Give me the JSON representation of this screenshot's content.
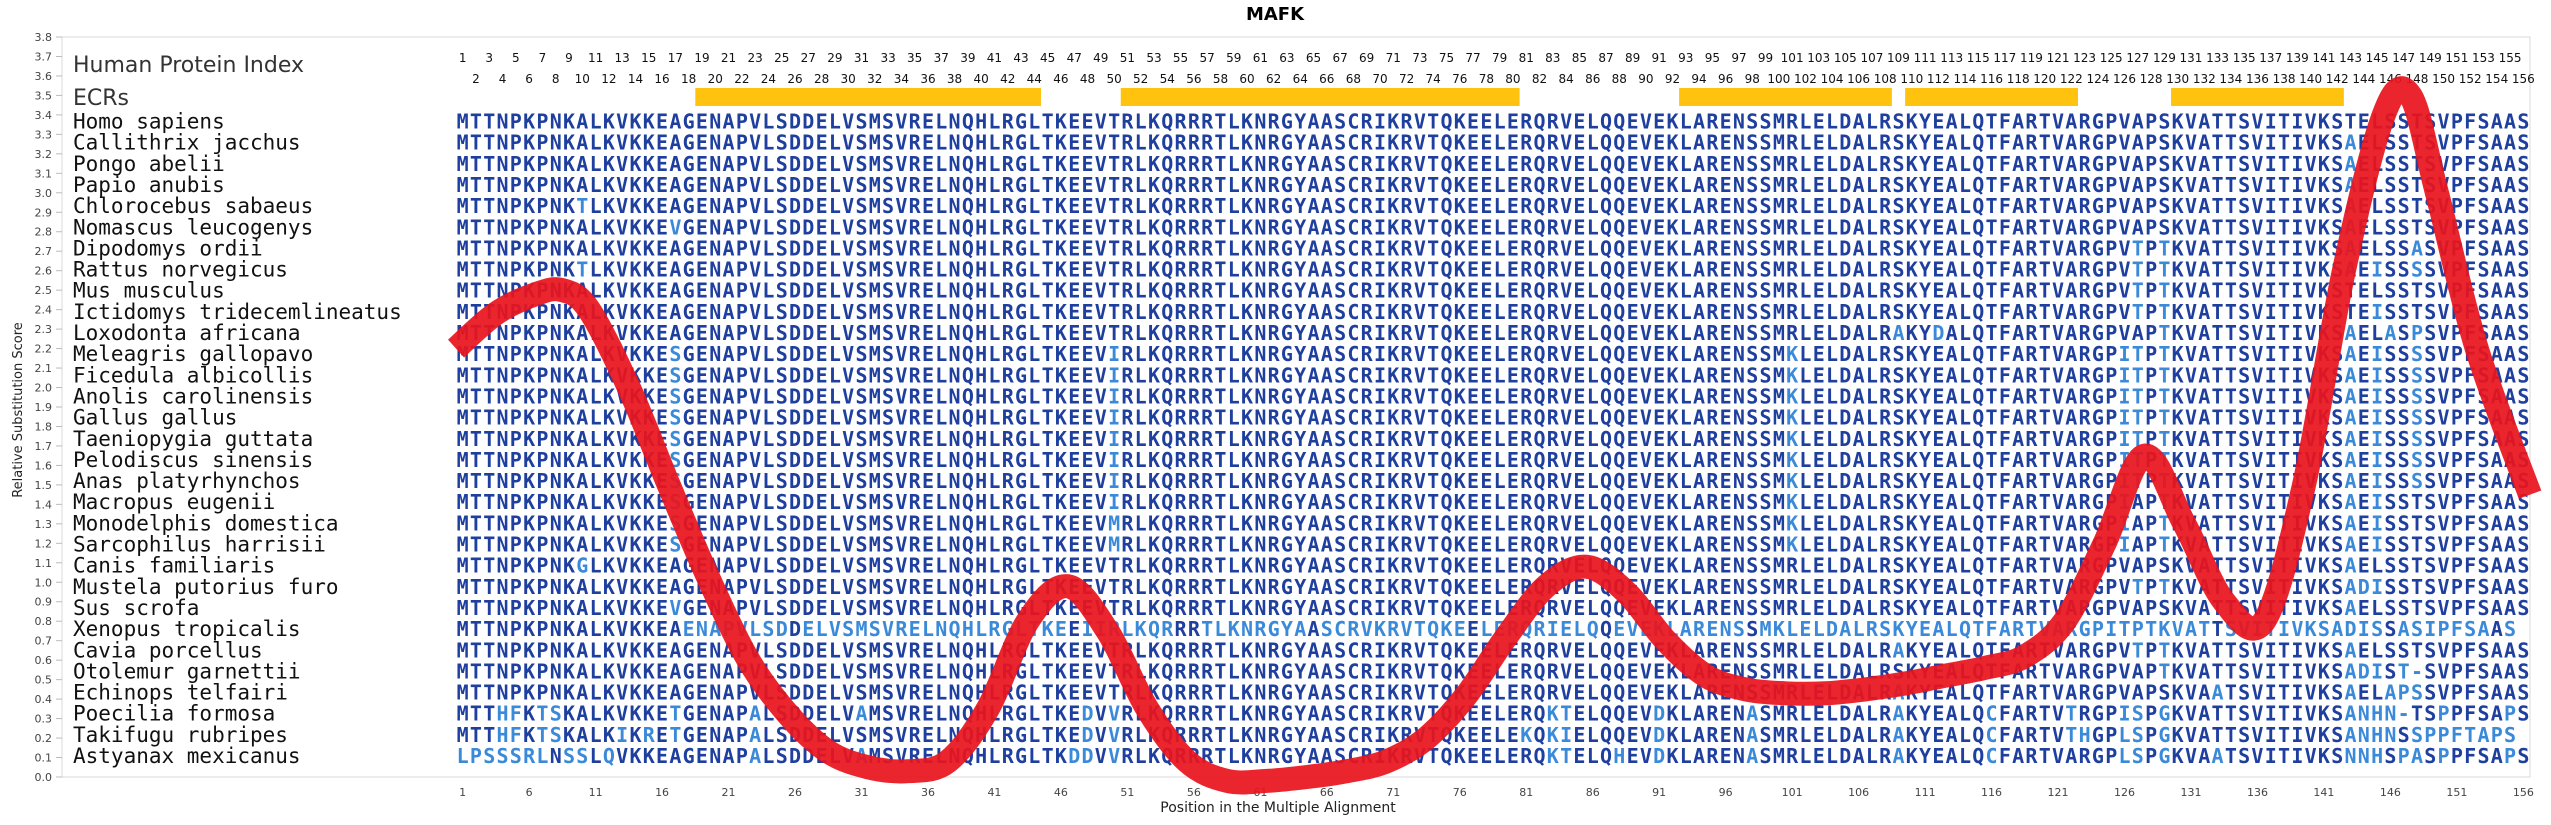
{
  "chart_data": {
    "type": "line",
    "title": "MAFK",
    "xlabel": "Position in the Multiple Alignment",
    "ylabel": "Relative Substitution Score",
    "xlim": [
      1,
      157
    ],
    "ylim": [
      0,
      3.8
    ],
    "y_ticks": [
      "0.0",
      "0.1",
      "0.2",
      "0.3",
      "0.4",
      "0.5",
      "0.6",
      "0.7",
      "0.8",
      "0.9",
      "1.0",
      "1.1",
      "1.2",
      "1.3",
      "1.4",
      "1.5",
      "1.6",
      "1.7",
      "1.8",
      "1.9",
      "2.0",
      "2.1",
      "2.2",
      "2.3",
      "2.4",
      "2.5",
      "2.6",
      "2.7",
      "2.8",
      "2.9",
      "3.0",
      "3.1",
      "3.2",
      "3.3",
      "3.4",
      "3.5",
      "3.6",
      "3.7",
      "3.8"
    ],
    "x_ticks": [
      "1",
      "6",
      "11",
      "16",
      "21",
      "26",
      "31",
      "36",
      "41",
      "46",
      "51",
      "56",
      "61",
      "66",
      "71",
      "76",
      "81",
      "86",
      "91",
      "96",
      "101",
      "106",
      "111",
      "116",
      "121",
      "126",
      "131",
      "136",
      "141",
      "146",
      "151",
      "156"
    ],
    "grid": false,
    "index_label": "Human Protein Index",
    "index_odd": [
      "1",
      "3",
      "5",
      "7",
      "9",
      "11",
      "13",
      "15",
      "17",
      "19",
      "21",
      "23",
      "25",
      "27",
      "29",
      "31",
      "33",
      "35",
      "37",
      "39",
      "41",
      "43",
      "45",
      "47",
      "49",
      "51",
      "53",
      "55",
      "57",
      "59",
      "61",
      "63",
      "65",
      "67",
      "69",
      "71",
      "73",
      "75",
      "77",
      "79",
      "81",
      "83",
      "85",
      "87",
      "89",
      "91",
      "93",
      "95",
      "97",
      "99",
      "101",
      "103",
      "105",
      "107",
      "109",
      "111",
      "113",
      "115",
      "117",
      "119",
      "121",
      "123",
      "125",
      "127",
      "129",
      "131",
      "133",
      "135",
      "137",
      "139",
      "141",
      "143",
      "145",
      "147",
      "149",
      "151",
      "153",
      "155"
    ],
    "index_even": [
      "2",
      "4",
      "6",
      "8",
      "10",
      "12",
      "14",
      "16",
      "18",
      "20",
      "22",
      "24",
      "26",
      "28",
      "30",
      "32",
      "34",
      "36",
      "38",
      "40",
      "42",
      "44",
      "46",
      "48",
      "50",
      "52",
      "54",
      "56",
      "58",
      "60",
      "62",
      "64",
      "66",
      "68",
      "70",
      "72",
      "74",
      "76",
      "78",
      "80",
      "82",
      "84",
      "86",
      "88",
      "90",
      "92",
      "94",
      "96",
      "98",
      "100",
      "102",
      "104",
      "106",
      "108",
      "110",
      "112",
      "114",
      "116",
      "118",
      "120",
      "122",
      "124",
      "126",
      "128",
      "130",
      "132",
      "134",
      "136",
      "138",
      "140",
      "142",
      "144",
      "146",
      "148",
      "150",
      "152",
      "154",
      "156"
    ],
    "ecr_label": "ECRs",
    "ecrs": [
      [
        19,
        44
      ],
      [
        51,
        80
      ],
      [
        93,
        108
      ],
      [
        110,
        122
      ],
      [
        130,
        142
      ]
    ],
    "ecr_color": "#ffc20e",
    "line_color": "#e8141e",
    "residue_color": "#1f3f9f",
    "variant_color": "#3b8ad9",
    "series": [
      {
        "x": [
          1,
          4,
          7,
          9,
          11,
          14,
          17,
          20,
          23,
          26,
          29,
          32,
          35,
          38,
          41,
          44,
          47,
          50,
          53,
          56,
          59,
          62,
          65,
          68,
          71,
          74,
          77,
          80,
          83,
          86,
          89,
          92,
          95,
          98,
          101,
          104,
          107,
          110,
          113,
          116,
          119,
          122,
          125,
          128,
          131,
          134,
          137,
          140,
          143,
          146,
          148,
          150,
          153,
          157
        ],
        "y": [
          2.2,
          2.38,
          2.48,
          2.5,
          2.4,
          2.0,
          1.5,
          1.02,
          0.6,
          0.32,
          0.13,
          0.05,
          0.03,
          0.08,
          0.35,
          0.8,
          0.98,
          0.75,
          0.35,
          0.08,
          -0.02,
          -0.02,
          0.0,
          0.03,
          0.08,
          0.2,
          0.42,
          0.72,
          0.98,
          1.08,
          0.95,
          0.7,
          0.52,
          0.45,
          0.43,
          0.43,
          0.45,
          0.48,
          0.52,
          0.56,
          0.62,
          0.8,
          1.2,
          1.65,
          1.3,
          0.9,
          0.8,
          1.5,
          2.6,
          3.4,
          3.5,
          3.0,
          2.2,
          1.45
        ]
      }
    ],
    "rows": [
      {
        "species": "Homo sapiens",
        "seq": "MTTNPKPNKALKVKKEAGENAPVLSDDELVSMSVRELNQHLRGLTKEEVTRLKQRRRTLKNRGYAASCRIKRVTQKEELERQRVELQQEVEKLARENSSMRLELDALRSKYEALQTFARTVARGPVAPSKVATTSVITIVKSTELSSTSVPFSAAS"
      },
      {
        "species": "Callithrix jacchus",
        "seq": "MTTNPKPNKALKVKKEAGENAPVLSDDELVSMSVRELNQHLRGLTKEEVTRLKQRRRTLKNRGYAASCRIKRVTQKEELERQRVELQQEVEKLARENSSMRLELDALRSKYEALQTFARTVARGPVAPSKVATTSVITIVKSAELSSTSVPFSAAS"
      },
      {
        "species": "Pongo abelii",
        "seq": "MTTNPKPNKALKVKKEAGENAPVLSDDELVSMSVRELNQHLRGLTKEEVTRLKQRRRTLKNRGYAASCRIKRVTQKEELERQRVELQQEVEKLARENSSMRLELDALRSKYEALQTFARTVARGPVAPSKVATTSVITIVKSAELSSTSVPFSAAS"
      },
      {
        "species": "Papio anubis",
        "seq": "MTTNPKPNKALKVKKEAGENAPVLSDDELVSMSVRELNQHLRGLTKEEVTRLKQRRRTLKNRGYAASCRIKRVTQKEELERQRVELQQEVEKLARENSSMRLELDALRSKYEALQTFARTVARGPVAPSKVATTSVITIVKSAELSSTSVPFSAAS"
      },
      {
        "species": "Chlorocebus sabaeus",
        "seq": "MTTNPKPNKTLKVKKEAGENAPVLSDDELVSMSVRELNQHLRGLTKEEVTRLKQRRRTLKNRGYAASCRIKRVTQKEELERQRVELQQEVEKLARENSSMRLELDALRSKYEALQTFARTVARGPVAPSKVATTSVITIVKSAELSSTSVPFSAAS"
      },
      {
        "species": "Nomascus leucogenys",
        "seq": "MTTNPKPNKALKVKKEVGENAPVLSDDELVSMSVRELNQHLRGLTKEEVTRLKQRRRTLKNRGYAASCRIKRVTQKEELERQRVELQQEVEKLARENSSMRLELDALRSKYEALQTFARTVARGPVAPSKVATTSVITIVKSAELSSTSVPFSAAS"
      },
      {
        "species": "Dipodomys ordii",
        "seq": "MTTNPKPNKALKVKKEAGENAPVLSDDELVSMSVRELNQHLRGLTKEEVTRLKQRRRTLKNRGYAASCRIKRVTQKEELERQRVELQQEVEKLARENSSMRLELDALRSKYEALQTFARTVARGPVTPTKVATTSVITIVKSAELSSASVPFSAAS"
      },
      {
        "species": "Rattus norvegicus",
        "seq": "MTTNPKPNKTLKVKKEAGENAPVLSDDELVSMSVRELNQHLRGLTKEEVTRLKQRRRTLKNRGYAASCRIKRVTQKEELERQRVELQQEVEKLARENSSMRLELDALRSKYEALQTFARTVARGPVTPTKVATTSVITIVKSAEISSSSVPFSAAS"
      },
      {
        "species": "Mus musculus",
        "seq": "MTTNPKPNKALKVKKEAGENAPVLSDDELVSMSVRELNQHLRGLTKEEVTRLKQRRRTLKNRGYAASCRIKRVTQKEELERQRVELQQEVEKLARENSSMRLELDALRSKYEALQTFARTVARGPVTPTKVATTSVITIVKSTELSSTSVPFSAAS"
      },
      {
        "species": "Ictidomys tridecemlineatus",
        "seq": "MTTNPKPNKALKVKKEAGENAPVLSDDELVSMSVRELNQHLRGLTKEEVTRLKQRRRTLKNRGYAASCRIKRVTQKEELERQRVELQQEVEKLARENSSMRLELDALRSKYEALQTFARTVARGPVTPTKVATTSVITIVKSTEISSTSVPFSAAS"
      },
      {
        "species": "Loxodonta africana",
        "seq": "MTTNPKPNKALKVKKEAGENAPVLSDDELVSMSVRELNQHLRGLTKEEVTRLKQRRRTLKNRGYAASCRIKRVTQKEELERQRVELQQEVEKLARENSSMRLELDALRAKYDALQTFARTVARGPVAPTKVATTSVITIVKSAELASPSVPFSAAS"
      },
      {
        "species": "Meleagris gallopavo",
        "seq": "MTTNPKPNKALKVKKESGENAPVLSDDELVSMSVRELNQHLRGLTKEEVIRLKQRRRTLKNRGYAASCRIKRVTQKEELERQRVELQQEVEKLARENSSMKLELDALRSKYEALQTFARTVARGPITPTKVATTSVITIVKSAEISSSSVPFSAAS"
      },
      {
        "species": "Ficedula albicollis",
        "seq": "MTTNPKPNKALKVKKESGENAPVLSDDELVSMSVRELNQHLRGLTKEEVIRLKQRRRTLKNRGYAASCRIKRVTQKEELERQRVELQQEVEKLARENSSMKLELDALRSKYEALQTFARTVARGPITPTKVATTSVITIVKSAEISSSSVPFSAAS"
      },
      {
        "species": "Anolis carolinensis",
        "seq": "MTTNPKPNKALKVKKESGENAPVLSDDELVSMSVRELNQHLRGLTKEEVIRLKQRRRTLKNRGYAASCRIKRVTQKEELERQRVELQQEVEKLARENSSMKLELDALRSKYEALQTFARTVARGPITPTKVATTSVITIVKSAEISSSSVPFSAAS"
      },
      {
        "species": "Gallus gallus",
        "seq": "MTTNPKPNKALKVKKESGENAPVLSDDELVSMSVRELNQHLRGLTKEEVIRLKQRRRTLKNRGYAASCRIKRVTQKEELERQRVELQQEVEKLARENSSMKLELDALRSKYEALQTFARTVARGPITPTKVATTSVITIVKSAEISSSSVPFSAAS"
      },
      {
        "species": "Taeniopygia guttata",
        "seq": "MTTNPKPNKALKVKKESGENAPVLSDDELVSMSVRELNQHLRGLTKEEVIRLKQRRRTLKNRGYAASCRIKRVTQKEELERQRVELQQEVEKLARENSSMKLELDALRSKYEALQTFARTVARGPITPTKVATTSVITIVKSAEISSSSVPFSAAS"
      },
      {
        "species": "Pelodiscus sinensis",
        "seq": "MTTNPKPNKALKVKKESGENAPVLSDDELVSMSVRELNQHLRGLTKEEVIRLKQRRRTLKNRGYAASCRIKRVTQKEELERQRVELQQEVEKLARENSSMKLELDALRSKYEALQTFARTVARGPITPTKVATTSVITIVKSAEISSSSVPFSAAS"
      },
      {
        "species": "Anas platyrhynchos",
        "seq": "MTTNPKPNKALKVKKESGENAPVLSDDELVSMSVRELNQHLRGLTKEEVIRLKQRRRTLKNRGYAASCRIKRVTQKEELERQRVELQQEVEKLARENSSMKLELDALRSKYEALQTFARTVARGPITPTKVATTSVITIVKSAEISSSSVPFSAAS"
      },
      {
        "species": "Macropus eugenii",
        "seq": "MTTNPKPNKALKVKKESGENAPVLSDDELVSMSVRELNQHLRGLTKEEVIRLKQRRRTLKNRGYAASCRIKRVTQKEELERQRVELQQEVEKLARENSSMKLELDALRSKYEALQTFARTVARGPIAPTKVATTSVITIVKSAEISSTSVPFSAAS"
      },
      {
        "species": "Monodelphis domestica",
        "seq": "MTTNPKPNKALKVKKESGENAPVLSDDELVSMSVRELNQHLRGLTKEEVMRLKQRRRTLKNRGYAASCRIKRVTQKEELERQRVELQQEVEKLARENSSMKLELDALRSKYEALQTFARTVARGPIAPTKVATTSVITIVKSAEISSTSVPFSAAS"
      },
      {
        "species": "Sarcophilus harrisii",
        "seq": "MTTNPKPNKALKVKKESGENAPVLSDDELVSMSVRELNQHLRGLTKEEVMRLKQRRRTLKNRGYAASCRIKRVTQKEELERQRVELQQEVEKLARENSSMKLELDALRSKYEALQTFARTVARGPIAPTKVATTSVITIVKSAEISSTSVPFSAAS"
      },
      {
        "species": "Canis familiaris",
        "seq": "MTTNPKPNKGLKVKKEAGENAPVLSDDELVSMSVRELNQHLRGLTKEEVTRLKQRRRTLKNRGYAASCRIKRVTQKEELERQRVELQQEVEKLARENSSMRLELDALRSKYEALQTFARTVARGPVAPSKVATTSVITIVKSAELSSTSVPFSAAS"
      },
      {
        "species": "Mustela putorius furo",
        "seq": "MTTNPKPNKALKVKKEAGENAPVLSDDELVSMSVRELNQHLRGLTKEEVTRLKQRRRTLKNRGYAASCRIKRVTQKEELERQRVELQQEVEKLARENSSMRLELDALRSKYEALQTFARTVARGPVTPTKVATTSVITIVKSADISSTSVPFSAAS"
      },
      {
        "species": "Sus scrofa",
        "seq": "MTTNPKPNKALKVKKEVGENAPVLSDDELVSMSVRELNQHLRGLTKEEVTRLKQRRRTLKNRGYAASCRIKRVTQKEELERQRVELQQEVEKLARENSSMRLELDALRSKYEALQTFARTVARGPVAPSKVATTSVITIVKSAELSSTSVPFSAAS"
      },
      {
        "species": "Xenopus tropicalis",
        "seq": "MTTNPKPNKALKVKKEAENAPVLSDDELVSMSVRELNQHLRGLTKEEIIRLKQRRRTLKNRGYAASCRVKRVTQKEELERQRIELQQEVEKLARENSSMKLELDALRSKYEALQTFARTVARGPITPTKVATTSVITIVKSADISSASIPFSAAS"
      },
      {
        "species": "Cavia porcellus",
        "seq": "MTTNPKPNKALKVKKEAGENAPVLSDDELVSMSVRELNQHLRGLTKEEVTRLKQRRRTLKNRGYAASCRIKRVTQKEELERQRVELQQEVEKLARENSSMRLELDALRAKYEALQTFARTVARGPVTPTKVATTSVITIVKSAELSSTSVPFSAAS"
      },
      {
        "species": "Otolemur garnettii",
        "seq": "MTTNPKPNKALKVKKEAGENAPVLSDDELVSMSVRELNQHLRGLTKEEVTRLKQRRRTLKNRGYAASCRIKRVTQKEELERQRVELQQEVEKLARENSSMRLELDALRSKYEALQTFARTVARGPVAPTKVATTSVITIVKSADIST-SVPFSAAS"
      },
      {
        "species": "Echinops telfairi",
        "seq": "MTTNPKPNKALKVKKEAGENAPVLSDDELVSMSVRELNQHLRGLTKEEVTRLKQRRRTLKNRGYAASCRIKRVTQKEELERQRVELQQEVEKLARENSSMRLELDALRAKYEALQTFARTVARGPVAPSKVAATSVITIVKSAELAPSSVPFSAAS"
      },
      {
        "species": "Poecilia formosa",
        "seq": "MTTHFKTSKALKVKKETGENAPALSDDELVAMSVRELNQHLRGLTKEDVVRLKQRRRTLKNRGYAASCRIKRVTQKEELERQKTELQQEVDKLARENASMRLELDALRAKYEALQCFARTVTRGPISPGKVATTSVITIVKSANHN-TSPPFSAPS"
      },
      {
        "species": "Takifugu rubripes",
        "seq": "MTTHFKTSKALKIKRETGENAPALSDDELVSMSVRELNQHLRGLTKEDVVRLKQRRRTLKNRGYAASCRIKRVTQKEELEKQKIELQQEVDKLARENASMRLELDALRAKYEALQCFARTVTHGPLSPGKVATTSVITIVKSANHNSSPPFTAPS"
      },
      {
        "species": "Astyanax mexicanus",
        "seq": "LPSSSRLNSSLQVKKEAGENAPALSDDELVAMSVRELNQHLRGLTKDDVVRLKQRRRTLKNRGYAASCRIKRVTQKEELERQKTELQHEVDKLARENASMRLELDALRAKYEALQCFARTVARGPLSPGKVAATSVITIVKSNNHSPASPPFSAPS"
      }
    ]
  }
}
